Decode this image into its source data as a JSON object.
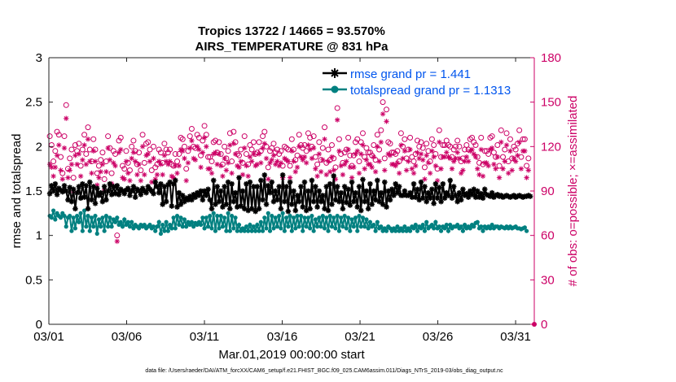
{
  "figure": {
    "title_line1": "Tropics 13722 / 14665 = 93.570%",
    "title_line2": "AIRS_TEMPERATURE @ 831 hPa",
    "xlabel": "Mar.01,2019 00:00:00 start",
    "ylabel_left": "rmse and totalspread",
    "ylabel_right": "# of obs: o=possible; ×=assimilated",
    "footer": "data file: /Users/raeder/DAI/ATM_forcXX/CAM6_setup/f.e21.FHIST_BGC.f09_025.CAM6assim.011/Diags_NTrS_2019-03/obs_diag_output.nc"
  },
  "chart_data": {
    "type": "line",
    "title": "Tropics 13722 / 14665 = 93.570%",
    "subtitle": "AIRS_TEMPERATURE @ 831 hPa",
    "xlabel": "Mar.01,2019 00:00:00 start",
    "ylabel": "rmse and totalspread",
    "ylabel_right": "# of obs: o=possible; ×=assimilated",
    "x_unit": "days since Mar.01,2019 00:00:00",
    "xlim": [
      0,
      31.2
    ],
    "ylim": [
      0,
      3
    ],
    "ylim_right": [
      0,
      180
    ],
    "x_ticks": [
      0,
      5,
      10,
      15,
      20,
      25,
      30
    ],
    "x_tick_labels": [
      "03/01",
      "03/06",
      "03/11",
      "03/16",
      "03/21",
      "03/26",
      "03/31"
    ],
    "y_ticks": [
      0,
      0.5,
      1,
      1.5,
      2,
      2.5,
      3
    ],
    "y_tick_labels": [
      "0",
      "0.5",
      "1",
      "1.5",
      "2",
      "2.5",
      "3"
    ],
    "y_right_ticks": [
      0,
      30,
      60,
      90,
      120,
      150,
      180
    ],
    "y_right_tick_labels": [
      "0",
      "30",
      "60",
      "90",
      "120",
      "150",
      "180"
    ],
    "legend": [
      "rmse grand pr = 1.441",
      "totalspread grand pr = 1.1313"
    ],
    "legend_position": "top-right",
    "grid": false,
    "colors": {
      "rmse": "#000000",
      "totalspread": "#008080",
      "obs": "#cc0066",
      "legend_text": "#0055ee"
    },
    "series": [
      {
        "name": "rmse",
        "label": "rmse grand pr = 1.441",
        "marker": "asterisk",
        "values": [
          1.47,
          1.56,
          1.5,
          1.58,
          1.46,
          1.53,
          1.51,
          1.49,
          1.56,
          1.5,
          1.4,
          1.54,
          1.38,
          1.52,
          1.3,
          1.48,
          1.55,
          1.42,
          1.58,
          1.43,
          1.56,
          1.3,
          1.6,
          1.4,
          1.55,
          1.36,
          1.53,
          1.45,
          1.48,
          1.38,
          1.55,
          1.4,
          1.5,
          1.58,
          1.46,
          1.55,
          1.47,
          1.56,
          1.46,
          1.52,
          1.5,
          1.47,
          1.51,
          1.53,
          1.45,
          1.5,
          1.55,
          1.43,
          1.52,
          1.5,
          1.46,
          1.53,
          1.5,
          1.48,
          1.55,
          1.52,
          1.5,
          1.47,
          1.6,
          1.55,
          1.48,
          1.58,
          1.35,
          1.55,
          1.38,
          1.57,
          1.6,
          1.33,
          1.58,
          1.62,
          1.32,
          1.48,
          1.35,
          1.45,
          1.38,
          1.42,
          1.4,
          1.44,
          1.4,
          1.46,
          1.43,
          1.48,
          1.45,
          1.5,
          1.4,
          1.5,
          1.45,
          1.52,
          1.4,
          1.3,
          1.62,
          1.35,
          1.55,
          1.38,
          1.5,
          1.32,
          1.55,
          1.35,
          1.6,
          1.3,
          1.58,
          1.38,
          1.48,
          1.32,
          1.65,
          1.33,
          1.5,
          1.3,
          1.58,
          1.28,
          1.6,
          1.3,
          1.55,
          1.27,
          1.55,
          1.3,
          1.62,
          1.4,
          1.68,
          1.35,
          1.56,
          1.48,
          1.6,
          1.38,
          1.5,
          1.4,
          1.55,
          1.3,
          1.68,
          1.38,
          1.55,
          1.27,
          1.6,
          1.35,
          1.5,
          1.28,
          1.45,
          1.38,
          1.55,
          1.32,
          1.6,
          1.28,
          1.5,
          1.3,
          1.62,
          1.38,
          1.55,
          1.32,
          1.5,
          1.38,
          1.45,
          1.3,
          1.55,
          1.28,
          1.58,
          1.35,
          1.67,
          1.4,
          1.55,
          1.38,
          1.48,
          1.3,
          1.55,
          1.37,
          1.52,
          1.34,
          1.6,
          1.38,
          1.48,
          1.32,
          1.55,
          1.28,
          1.63,
          1.38,
          1.5,
          1.3,
          1.58,
          1.35,
          1.5,
          1.4,
          1.62,
          1.38,
          1.48,
          1.35,
          1.6,
          1.32,
          1.5,
          1.4,
          1.52,
          1.45,
          1.58,
          1.48,
          1.55,
          1.45,
          1.45,
          1.5,
          1.45,
          1.45,
          1.48,
          1.43,
          1.58,
          1.43,
          1.52,
          1.4,
          1.6,
          1.42,
          1.55,
          1.38,
          1.48,
          1.42,
          1.52,
          1.36,
          1.58,
          1.42,
          1.54,
          1.38,
          1.58,
          1.42,
          1.48,
          1.45,
          1.62,
          1.42,
          1.55,
          1.45,
          1.38,
          1.48,
          1.4,
          1.52,
          1.45,
          1.47,
          1.43,
          1.5,
          1.46,
          1.52,
          1.43,
          1.5,
          1.43,
          1.47,
          1.42,
          1.52,
          1.46,
          1.45,
          1.44,
          1.48,
          1.43,
          1.45,
          1.46,
          1.44,
          1.45,
          1.43,
          1.44,
          1.45,
          1.44,
          1.43,
          1.44,
          1.45,
          1.43,
          1.44,
          1.45,
          1.44,
          1.43,
          1.44,
          1.44,
          1.45,
          1.44
        ]
      },
      {
        "name": "totalspread",
        "label": "totalspread grand pr = 1.1313",
        "marker": "filled-circle",
        "values": [
          1.22,
          1.2,
          1.28,
          1.18,
          1.25,
          1.22,
          1.2,
          1.25,
          1.22,
          1.1,
          1.2,
          1.22,
          1.05,
          1.2,
          1.08,
          1.22,
          1.15,
          1.25,
          1.05,
          1.28,
          1.1,
          1.22,
          1.05,
          1.2,
          1.1,
          1.22,
          1.02,
          1.18,
          1.1,
          1.2,
          1.05,
          1.22,
          1.1,
          1.2,
          1.1,
          1.18,
          1.15,
          1.2,
          1.12,
          1.15,
          1.1,
          1.18,
          1.12,
          1.15,
          1.1,
          1.15,
          1.08,
          1.12,
          1.1,
          1.08,
          1.12,
          1.1,
          1.12,
          1.08,
          1.1,
          1.12,
          1.08,
          1.1,
          1.05,
          1.1,
          1.15,
          1.02,
          1.12,
          1.05,
          1.15,
          1.05,
          1.12,
          1.08,
          1.2,
          1.08,
          1.22,
          1.12,
          1.2,
          1.1,
          1.18,
          1.1,
          1.15,
          1.12,
          1.15,
          1.1,
          1.14,
          1.12,
          1.15,
          1.12,
          1.2,
          1.08,
          1.2,
          1.1,
          1.22,
          1.08,
          1.25,
          1.05,
          1.22,
          1.08,
          1.22,
          1.1,
          1.2,
          1.05,
          1.25,
          1.05,
          1.22,
          1.08,
          1.2,
          1.05,
          1.12,
          1.05,
          1.08,
          1.05,
          1.1,
          1.05,
          1.12,
          1.05,
          1.1,
          1.05,
          1.12,
          1.05,
          1.15,
          1.05,
          1.2,
          1.08,
          1.25,
          1.05,
          1.22,
          1.08,
          1.2,
          1.1,
          1.22,
          1.08,
          1.25,
          1.05,
          1.2,
          1.1,
          1.22,
          1.05,
          1.2,
          1.08,
          1.22,
          1.1,
          1.22,
          1.05,
          1.2,
          1.1,
          1.2,
          1.08,
          1.22,
          1.05,
          1.18,
          1.1,
          1.2,
          1.1,
          1.22,
          1.08,
          1.2,
          1.05,
          1.22,
          1.1,
          1.2,
          1.08,
          1.22,
          1.05,
          1.2,
          1.1,
          1.22,
          1.08,
          1.2,
          1.05,
          1.18,
          1.1,
          1.2,
          1.05,
          1.22,
          1.1,
          1.2,
          1.1,
          1.18,
          1.08,
          1.15,
          1.1,
          1.12,
          1.05,
          1.15,
          1.08,
          1.1,
          1.05,
          1.08,
          1.05,
          1.1,
          1.08,
          1.05,
          1.08,
          1.05,
          1.1,
          1.05,
          1.08,
          1.05,
          1.1,
          1.05,
          1.08,
          1.05,
          1.1,
          1.08,
          1.12,
          1.05,
          1.1,
          1.08,
          1.12,
          1.05,
          1.15,
          1.08,
          1.1,
          1.12,
          1.08,
          1.15,
          1.08,
          1.1,
          1.05,
          1.1,
          1.08,
          1.12,
          1.05,
          1.12,
          1.08,
          1.1,
          1.1,
          1.12,
          1.08,
          1.1,
          1.05,
          1.12,
          1.08,
          1.1,
          1.08,
          1.12,
          1.1,
          1.14,
          1.15,
          1.08,
          1.1,
          1.05,
          1.1,
          1.08,
          1.1,
          1.08,
          1.12,
          1.08,
          1.1,
          1.1,
          1.08,
          1.1,
          1.09,
          1.08,
          1.1,
          1.08,
          1.1,
          1.08,
          1.09,
          1.1,
          1.08,
          1.08,
          1.07,
          1.08,
          1.09,
          1.05
        ]
      },
      {
        "name": "obs_possible",
        "label": "o=possible",
        "marker": "open-circle",
        "axis": "right",
        "values": [
          127,
          121,
          110,
          117,
          130,
          128,
          113,
          102,
          127,
          148,
          105,
          112,
          118,
          99,
          121,
          117,
          122,
          107,
          118,
          128,
          115,
          133,
          118,
          110,
          125,
          118,
          102,
          107,
          111,
          116,
          98,
          110,
          127,
          119,
          102,
          117,
          115,
          60,
          124,
          126,
          107,
          105,
          117,
          109,
          104,
          120,
          124,
          117,
          108,
          116,
          104,
          128,
          109,
          122,
          123,
          118,
          104,
          120,
          106,
          108,
          118,
          116,
          109,
          122,
          118,
          116,
          118,
          108,
          107,
          115,
          110,
          115,
          126,
          125,
          120,
          105,
          117,
          127,
          132,
          120,
          119,
          128,
          126,
          114,
          124,
          134,
          128,
          113,
          113,
          110,
          123,
          124,
          116,
          123,
          115,
          108,
          120,
          112,
          117,
          129,
          110,
          130,
          123,
          115,
          114,
          118,
          109,
          127,
          115,
          108,
          121,
          118,
          123,
          115,
          116,
          123,
          117,
          127,
          130,
          120,
          106,
          117,
          119,
          122,
          116,
          118,
          115,
          117,
          107,
          120,
          119,
          118,
          107,
          125,
          118,
          111,
          114,
          128,
          121,
          119,
          121,
          117,
          129,
          126,
          120,
          127,
          113,
          108,
          123,
          111,
          119,
          133,
          109,
          118,
          111,
          121,
          112,
          106,
          146,
          125,
          115,
          109,
          116,
          118,
          126,
          114,
          107,
          114,
          123,
          125,
          110,
          123,
          129,
          113,
          119,
          116,
          116,
          114,
          121,
          111,
          128,
          118,
          131,
          150,
          112,
          145,
          123,
          122,
          116,
          116,
          115,
          117,
          110,
          129,
          120,
          125,
          112,
          118,
          126,
          113,
          110,
          115,
          124,
          120,
          123,
          119,
          106,
          122,
          117,
          110,
          125,
          121,
          115,
          105,
          131,
          113,
          121,
          121,
          124,
          121,
          120,
          113,
          118,
          120,
          124,
          120,
          110,
          112,
          118,
          121,
          118,
          125,
          126,
          123,
          121,
          113,
          109,
          126,
          108,
          117,
          117,
          115,
          126,
          127,
          116,
          113,
          121,
          107,
          131,
          113,
          118,
          129,
          110,
          125,
          112,
          120,
          118,
          122,
          131,
          113,
          125,
          125,
          107,
          112
        ]
      },
      {
        "name": "obs_assimilated",
        "label": "×=assimilated",
        "marker": "asterisk",
        "axis": "right",
        "values": [
          108,
          106,
          100,
          106,
          114,
          121,
          104,
          98,
          119,
          139,
          99,
          104,
          108,
          90,
          114,
          108,
          115,
          100,
          111,
          121,
          108,
          125,
          110,
          102,
          117,
          110,
          94,
          99,
          103,
          108,
          91,
          103,
          119,
          111,
          95,
          109,
          107,
          56,
          116,
          118,
          99,
          98,
          110,
          102,
          97,
          112,
          116,
          110,
          101,
          108,
          97,
          120,
          101,
          114,
          115,
          110,
          96,
          112,
          98,
          101,
          110,
          108,
          101,
          114,
          110,
          108,
          110,
          100,
          99,
          107,
          102,
          107,
          118,
          117,
          112,
          97,
          109,
          119,
          124,
          112,
          111,
          120,
          118,
          106,
          116,
          126,
          120,
          105,
          105,
          102,
          115,
          116,
          108,
          115,
          107,
          100,
          112,
          104,
          109,
          121,
          102,
          122,
          115,
          107,
          106,
          110,
          101,
          119,
          107,
          100,
          113,
          110,
          115,
          107,
          108,
          115,
          109,
          119,
          122,
          112,
          98,
          109,
          111,
          114,
          108,
          110,
          107,
          109,
          99,
          112,
          111,
          110,
          99,
          117,
          110,
          103,
          106,
          120,
          113,
          111,
          113,
          109,
          121,
          118,
          112,
          119,
          105,
          100,
          115,
          103,
          111,
          125,
          101,
          110,
          103,
          113,
          104,
          98,
          138,
          117,
          107,
          101,
          108,
          110,
          118,
          106,
          99,
          106,
          115,
          117,
          102,
          115,
          121,
          105,
          111,
          108,
          108,
          106,
          113,
          103,
          120,
          110,
          123,
          142,
          104,
          137,
          115,
          114,
          108,
          108,
          107,
          109,
          102,
          121,
          112,
          117,
          104,
          110,
          118,
          105,
          102,
          107,
          116,
          112,
          115,
          111,
          98,
          114,
          109,
          102,
          117,
          113,
          107,
          97,
          123,
          105,
          113,
          113,
          116,
          113,
          112,
          105,
          110,
          112,
          116,
          112,
          102,
          104,
          110,
          113,
          110,
          117,
          118,
          115,
          113,
          105,
          101,
          118,
          100,
          109,
          109,
          107,
          118,
          119,
          108,
          105,
          113,
          99,
          123,
          105,
          110,
          121,
          102,
          117,
          104,
          112,
          110,
          114,
          123,
          105,
          117,
          117,
          99,
          104
        ]
      }
    ]
  }
}
